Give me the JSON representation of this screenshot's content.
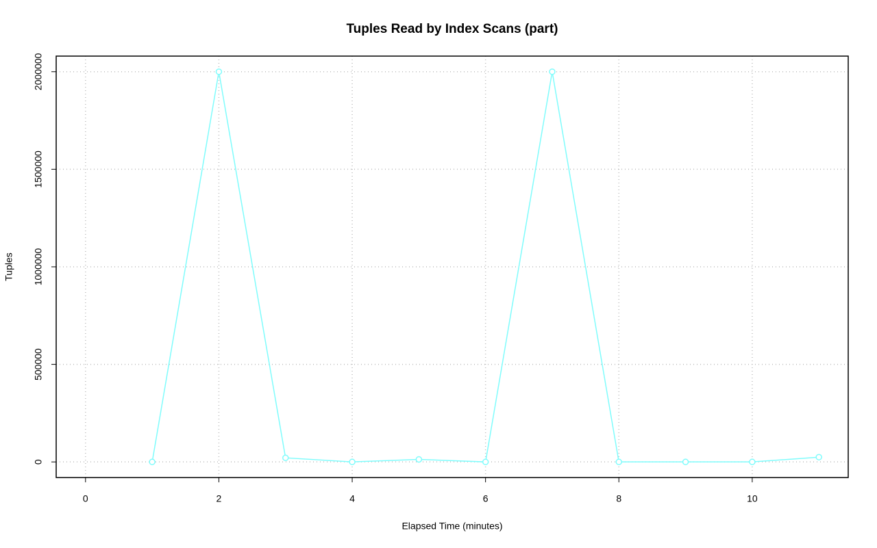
{
  "chart_data": {
    "type": "line",
    "title": "Tuples Read by Index Scans (part)",
    "xlabel": "Elapsed Time (minutes)",
    "ylabel": "Tuples",
    "x": [
      1,
      2,
      3,
      4,
      5,
      6,
      7,
      8,
      9,
      10,
      11
    ],
    "series": [
      {
        "name": "Tuples",
        "color": "#7ffcfc",
        "values": [
          0,
          2000000,
          21000,
          0,
          13000,
          0,
          2000000,
          0,
          0,
          0,
          24500
        ]
      }
    ],
    "xlim": [
      -0.44,
      11.44
    ],
    "xticks": [
      0,
      2,
      4,
      6,
      8,
      10
    ],
    "ylim": [
      -80000,
      2080000
    ],
    "yticks": [
      0,
      500000,
      1000000,
      1500000,
      2000000
    ],
    "grid": true,
    "markers": "open-circle"
  }
}
